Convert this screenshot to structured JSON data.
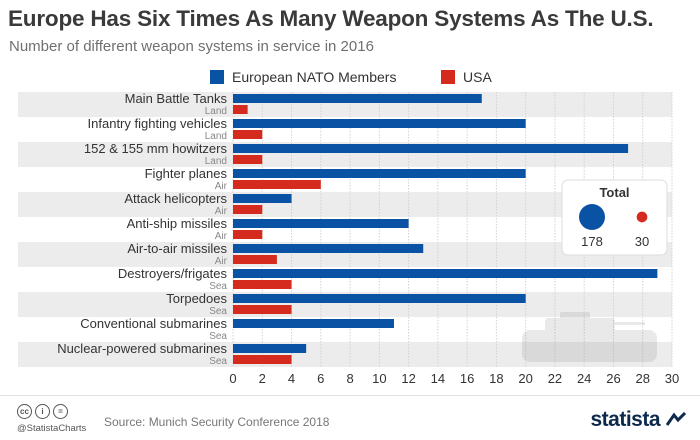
{
  "header": {
    "title": "Europe Has Six Times As Many Weapon Systems As The U.S.",
    "subtitle": "Number of different weapon systems in service in 2016"
  },
  "legend": {
    "items": [
      {
        "label": "European NATO Members",
        "color": "#0a52a3"
      },
      {
        "label": "USA",
        "color": "#d52b1e"
      }
    ]
  },
  "chart_data": {
    "type": "bar",
    "orientation": "horizontal",
    "categories": [
      {
        "label": "Main Battle Tanks",
        "domain": "Land"
      },
      {
        "label": "Infantry fighting vehicles",
        "domain": "Land"
      },
      {
        "label": "152 & 155 mm howitzers",
        "domain": "Land"
      },
      {
        "label": "Fighter planes",
        "domain": "Air"
      },
      {
        "label": "Attack helicopters",
        "domain": "Air"
      },
      {
        "label": "Anti-ship missiles",
        "domain": "Air"
      },
      {
        "label": "Air-to-air missiles",
        "domain": "Air"
      },
      {
        "label": "Destroyers/frigates",
        "domain": "Sea"
      },
      {
        "label": "Torpedoes",
        "domain": "Sea"
      },
      {
        "label": "Conventional submarines",
        "domain": "Sea"
      },
      {
        "label": "Nuclear-powered submarines",
        "domain": "Sea"
      }
    ],
    "series": [
      {
        "name": "European NATO Members",
        "color": "#0a52a3",
        "values": [
          17,
          20,
          27,
          20,
          4,
          12,
          13,
          29,
          20,
          11,
          5
        ]
      },
      {
        "name": "USA",
        "color": "#d52b1e",
        "values": [
          1,
          2,
          2,
          6,
          2,
          2,
          3,
          4,
          4,
          0,
          4
        ]
      }
    ],
    "xlim": [
      0,
      30
    ],
    "xticks": [
      0,
      2,
      4,
      6,
      8,
      10,
      12,
      14,
      16,
      18,
      20,
      22,
      24,
      26,
      28,
      30
    ],
    "grid": true,
    "legend_position": "top-center",
    "inset": {
      "title": "Total",
      "items": [
        {
          "value": 178,
          "color": "#0a52a3"
        },
        {
          "value": 30,
          "color": "#d52b1e"
        }
      ]
    }
  },
  "footer": {
    "cc_icons": [
      "cc",
      "i",
      "="
    ],
    "handle": "@StatistaCharts",
    "source": "Source: Munich Security Conference 2018",
    "brand": "statista"
  }
}
